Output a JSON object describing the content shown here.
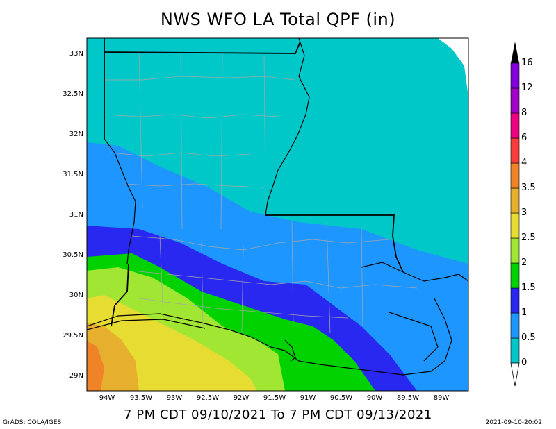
{
  "title": "NWS WFO LA Total QPF (in)",
  "subtitle": "7 PM CDT 09/10/2021 To 7 PM CDT 09/13/2021",
  "footer_left": "GrADS: COLA/IGES",
  "footer_right": "2021-09-10-20:02",
  "lat_labels": [
    "33N",
    "32.5N",
    "32N",
    "31.5N",
    "31N",
    "30.5N",
    "30N",
    "29.5N",
    "29N"
  ],
  "lon_labels": [
    "94W",
    "93.5W",
    "93W",
    "92.5W",
    "92W",
    "91.5W",
    "91W",
    "90.5W",
    "90W",
    "89.5W",
    "89W"
  ],
  "colorbar": {
    "levels": [
      "0",
      "0.5",
      "1",
      "1.5",
      "2",
      "2.5",
      "3",
      "3.5",
      "4",
      "6",
      "8",
      "12",
      "16"
    ],
    "colors": [
      "#00c8c8",
      "#1e96ff",
      "#2828f0",
      "#00d200",
      "#a0e632",
      "#e6dc32",
      "#e6af2d",
      "#f08228",
      "#fa3c3c",
      "#f00082",
      "#a000c8",
      "#8200dc",
      "#000000"
    ]
  },
  "map_colors": {
    "cyan": "#00c8c8",
    "light_blue": "#1e96ff",
    "dark_blue": "#2828f0",
    "green": "#00d200",
    "lime": "#a0e632",
    "yellow": "#e6dc32",
    "gold": "#e6af2d",
    "orange": "#f08228"
  }
}
